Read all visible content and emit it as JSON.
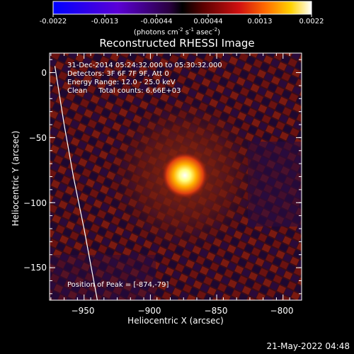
{
  "colorbar": {
    "tick_labels": [
      "-0.0022",
      "-0.0013",
      "-0.00044",
      "0.00044",
      "0.0013",
      "0.0022"
    ],
    "units_text": "(photons cm",
    "units_exp1": "-2",
    "units_mid": " s",
    "units_exp2": "-1",
    "units_mid2": " asec",
    "units_exp3": "-2",
    "units_end": ")"
  },
  "title": "Reconstructed RHESSI Image",
  "info": {
    "line1": "31-Dec-2014 05:24:32.000 to 05:30:32.000",
    "line2": "Detectors: 3F 6F 7F 9F, Att 0",
    "line3": "Energy Range: 12.0 - 25.0 keV",
    "line4": "Clean     Total counts: 6.66E+03"
  },
  "peak_label": "Position of Peak = [-874,-79]",
  "chart_data": {
    "type": "heatmap",
    "title": "Reconstructed RHESSI Image",
    "xlabel": "Heliocentric X (arcsec)",
    "ylabel": "Heliocentric Y (arcsec)",
    "xlim": [
      -976,
      -786
    ],
    "ylim": [
      -175,
      15
    ],
    "x_ticks": [
      -950,
      -900,
      -850,
      -800
    ],
    "y_ticks": [
      0,
      -50,
      -100,
      -150
    ],
    "x_tick_labels": [
      "−950",
      "−900",
      "−850",
      "−800"
    ],
    "y_tick_labels": [
      "0",
      "−50",
      "−100",
      "−150"
    ],
    "peak": {
      "x": -874,
      "y": -79
    },
    "colormap_range": [
      -0.0022,
      0.0022
    ],
    "limb_curve": [
      [
        -972,
        5
      ],
      [
        -965,
        -40
      ],
      [
        -958,
        -80
      ],
      [
        -950,
        -120
      ],
      [
        -940,
        -175
      ]
    ]
  },
  "timestamp": "21-May-2022 04:48"
}
